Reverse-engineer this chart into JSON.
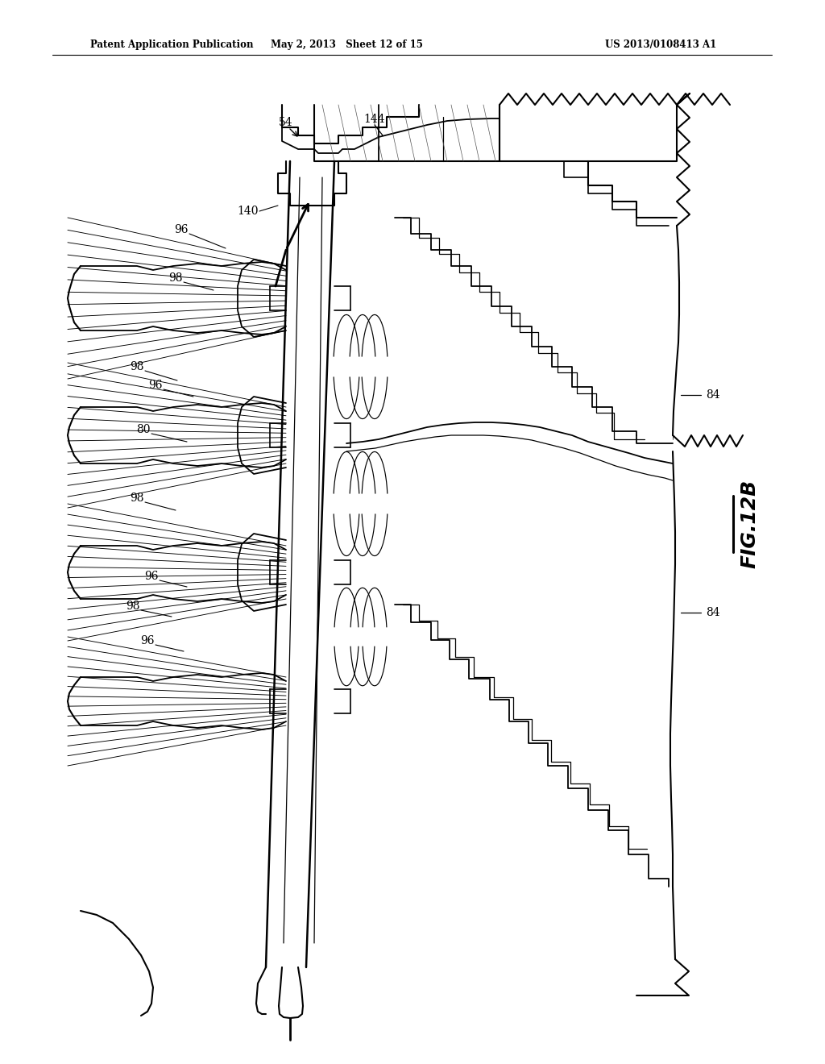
{
  "header_left": "Patent Application Publication",
  "header_mid": "May 2, 2013   Sheet 12 of 15",
  "header_right": "US 2013/0108413 A1",
  "fig_label": "FIG.12B",
  "bg": "#ffffff"
}
